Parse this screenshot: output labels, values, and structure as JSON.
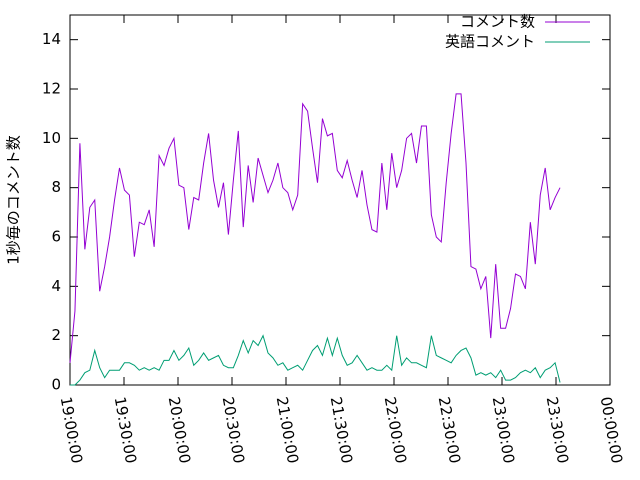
{
  "chart_data": {
    "type": "line",
    "ylabel": "1秒毎のコメント数",
    "xlim": [
      "19:00:00",
      "00:00:00"
    ],
    "xticks": [
      "19:00:00",
      "19:30:00",
      "20:00:00",
      "20:30:00",
      "21:00:00",
      "21:30:00",
      "22:00:00",
      "22:30:00",
      "23:00:00",
      "23:30:00",
      "00:00:00"
    ],
    "ylim": [
      0,
      15
    ],
    "yticks": [
      0,
      2,
      4,
      6,
      8,
      10,
      12,
      14
    ],
    "legend": "top-right",
    "x": [
      "19:00:00",
      "19:02:45",
      "19:05:30",
      "19:08:15",
      "19:11:00",
      "19:13:45",
      "19:16:30",
      "19:19:15",
      "19:22:00",
      "19:24:45",
      "19:27:30",
      "19:30:15",
      "19:33:00",
      "19:35:45",
      "19:38:30",
      "19:41:15",
      "19:44:00",
      "19:46:45",
      "19:49:30",
      "19:52:15",
      "19:55:00",
      "19:57:45",
      "20:00:30",
      "20:03:15",
      "20:06:00",
      "20:08:45",
      "20:11:30",
      "20:14:15",
      "20:17:00",
      "20:19:45",
      "20:22:30",
      "20:25:15",
      "20:28:00",
      "20:30:45",
      "20:33:30",
      "20:36:15",
      "20:39:00",
      "20:41:45",
      "20:44:30",
      "20:47:15",
      "20:50:00",
      "20:52:45",
      "20:55:30",
      "20:58:15",
      "21:01:00",
      "21:03:45",
      "21:06:30",
      "21:09:15",
      "21:12:00",
      "21:14:45",
      "21:17:30",
      "21:20:15",
      "21:23:00",
      "21:25:45",
      "21:28:30",
      "21:31:15",
      "21:34:00",
      "21:36:45",
      "21:39:30",
      "21:42:15",
      "21:45:00",
      "21:47:45",
      "21:50:30",
      "21:53:15",
      "21:56:00",
      "21:58:45",
      "22:01:30",
      "22:04:15",
      "22:07:00",
      "22:09:45",
      "22:12:30",
      "22:15:15",
      "22:18:00",
      "22:20:45",
      "22:23:30",
      "22:26:15",
      "22:29:00",
      "22:31:45",
      "22:34:30",
      "22:37:15",
      "22:40:00",
      "22:42:45",
      "22:45:30",
      "22:48:15",
      "22:51:00",
      "22:53:45",
      "22:56:30",
      "22:59:15",
      "23:02:00",
      "23:04:45",
      "23:07:30",
      "23:10:15",
      "23:13:00",
      "23:15:45",
      "23:18:30",
      "23:21:15",
      "23:24:00",
      "23:26:45",
      "23:29:30",
      "23:32:15"
    ],
    "series": [
      {
        "name": "コメント数",
        "color": "#9400d3",
        "values": [
          0.9,
          3,
          9.8,
          5.5,
          7.2,
          7.5,
          3.8,
          4.8,
          6,
          7.5,
          8.8,
          7.9,
          7.7,
          5.2,
          6.6,
          6.5,
          7.1,
          5.6,
          9.3,
          8.9,
          9.6,
          10,
          8.1,
          8,
          6.3,
          7.6,
          7.5,
          9,
          10.2,
          8.3,
          7.2,
          8.2,
          6.1,
          8.3,
          10.3,
          6.4,
          8.9,
          7.4,
          9.2,
          8.5,
          7.8,
          8.3,
          9,
          8,
          7.8,
          7.1,
          7.7,
          11.4,
          11.1,
          9.6,
          8.2,
          10.8,
          10.1,
          10.2,
          8.7,
          8.4,
          9.1,
          8.3,
          7.6,
          8.7,
          7.3,
          6.3,
          6.2,
          9,
          7.1,
          9.4,
          8,
          8.7,
          10,
          10.2,
          9,
          10.5,
          10.5,
          6.9,
          6,
          5.8,
          8.2,
          10.2,
          11.8,
          11.8,
          9,
          4.8,
          4.7,
          3.9,
          4.4,
          1.9,
          4.9,
          2.3,
          2.3,
          3.1,
          4.5,
          4.4,
          3.9,
          6.6,
          4.9,
          7.7,
          8.8,
          7.1,
          7.6,
          8
        ]
      },
      {
        "name": "英語コメント",
        "color": "#009e73",
        "values": [
          0,
          0,
          0.2,
          0.5,
          0.6,
          1.4,
          0.7,
          0.3,
          0.6,
          0.6,
          0.6,
          0.9,
          0.9,
          0.8,
          0.6,
          0.7,
          0.6,
          0.7,
          0.6,
          1,
          1,
          1.4,
          1,
          1.2,
          1.5,
          0.8,
          1,
          1.3,
          1,
          1.1,
          1.2,
          0.8,
          0.7,
          0.7,
          1.2,
          1.8,
          1.3,
          1.8,
          1.6,
          2,
          1.3,
          1.1,
          0.8,
          0.9,
          0.6,
          0.7,
          0.8,
          0.6,
          1,
          1.4,
          1.6,
          1.2,
          1.9,
          1.2,
          1.9,
          1.2,
          0.8,
          0.9,
          1.2,
          0.9,
          0.6,
          0.7,
          0.6,
          0.6,
          0.8,
          0.6,
          2,
          0.8,
          1.1,
          0.9,
          0.9,
          0.8,
          0.7,
          2,
          1.2,
          1.1,
          1,
          0.9,
          1.2,
          1.4,
          1.5,
          1.1,
          0.4,
          0.5,
          0.4,
          0.5,
          0.3,
          0.6,
          0.2,
          0.2,
          0.3,
          0.5,
          0.6,
          0.5,
          0.7,
          0.3,
          0.6,
          0.7,
          0.9,
          0.1
        ]
      }
    ]
  }
}
